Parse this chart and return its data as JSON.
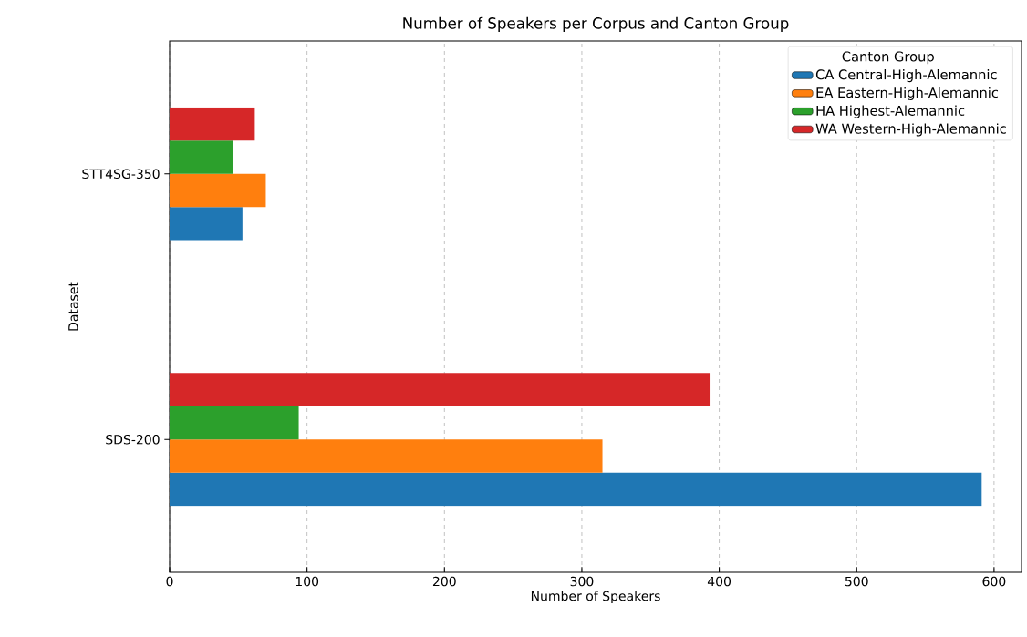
{
  "chart_data": {
    "type": "bar",
    "orientation": "horizontal",
    "title": "Number of Speakers per Corpus and Canton Group",
    "xlabel": "Number of Speakers",
    "ylabel": "Dataset",
    "legend_title": "Canton Group",
    "categories": [
      "STT4SG-350",
      "SDS-200"
    ],
    "series": [
      {
        "name": "CA Central-High-Alemannic",
        "color": "#1f77b4",
        "values": [
          53,
          591
        ]
      },
      {
        "name": "EA Eastern-High-Alemannic",
        "color": "#ff7f0e",
        "values": [
          70,
          315
        ]
      },
      {
        "name": "HA Highest-Alemannic",
        "color": "#2ca02c",
        "values": [
          46,
          94
        ]
      },
      {
        "name": "WA Western-High-Alemannic",
        "color": "#d62728",
        "values": [
          62,
          393
        ]
      }
    ],
    "xlim": [
      0,
      620
    ],
    "xticks": [
      0,
      100,
      200,
      300,
      400,
      500,
      600
    ],
    "grid": "x",
    "legend": "top right"
  }
}
